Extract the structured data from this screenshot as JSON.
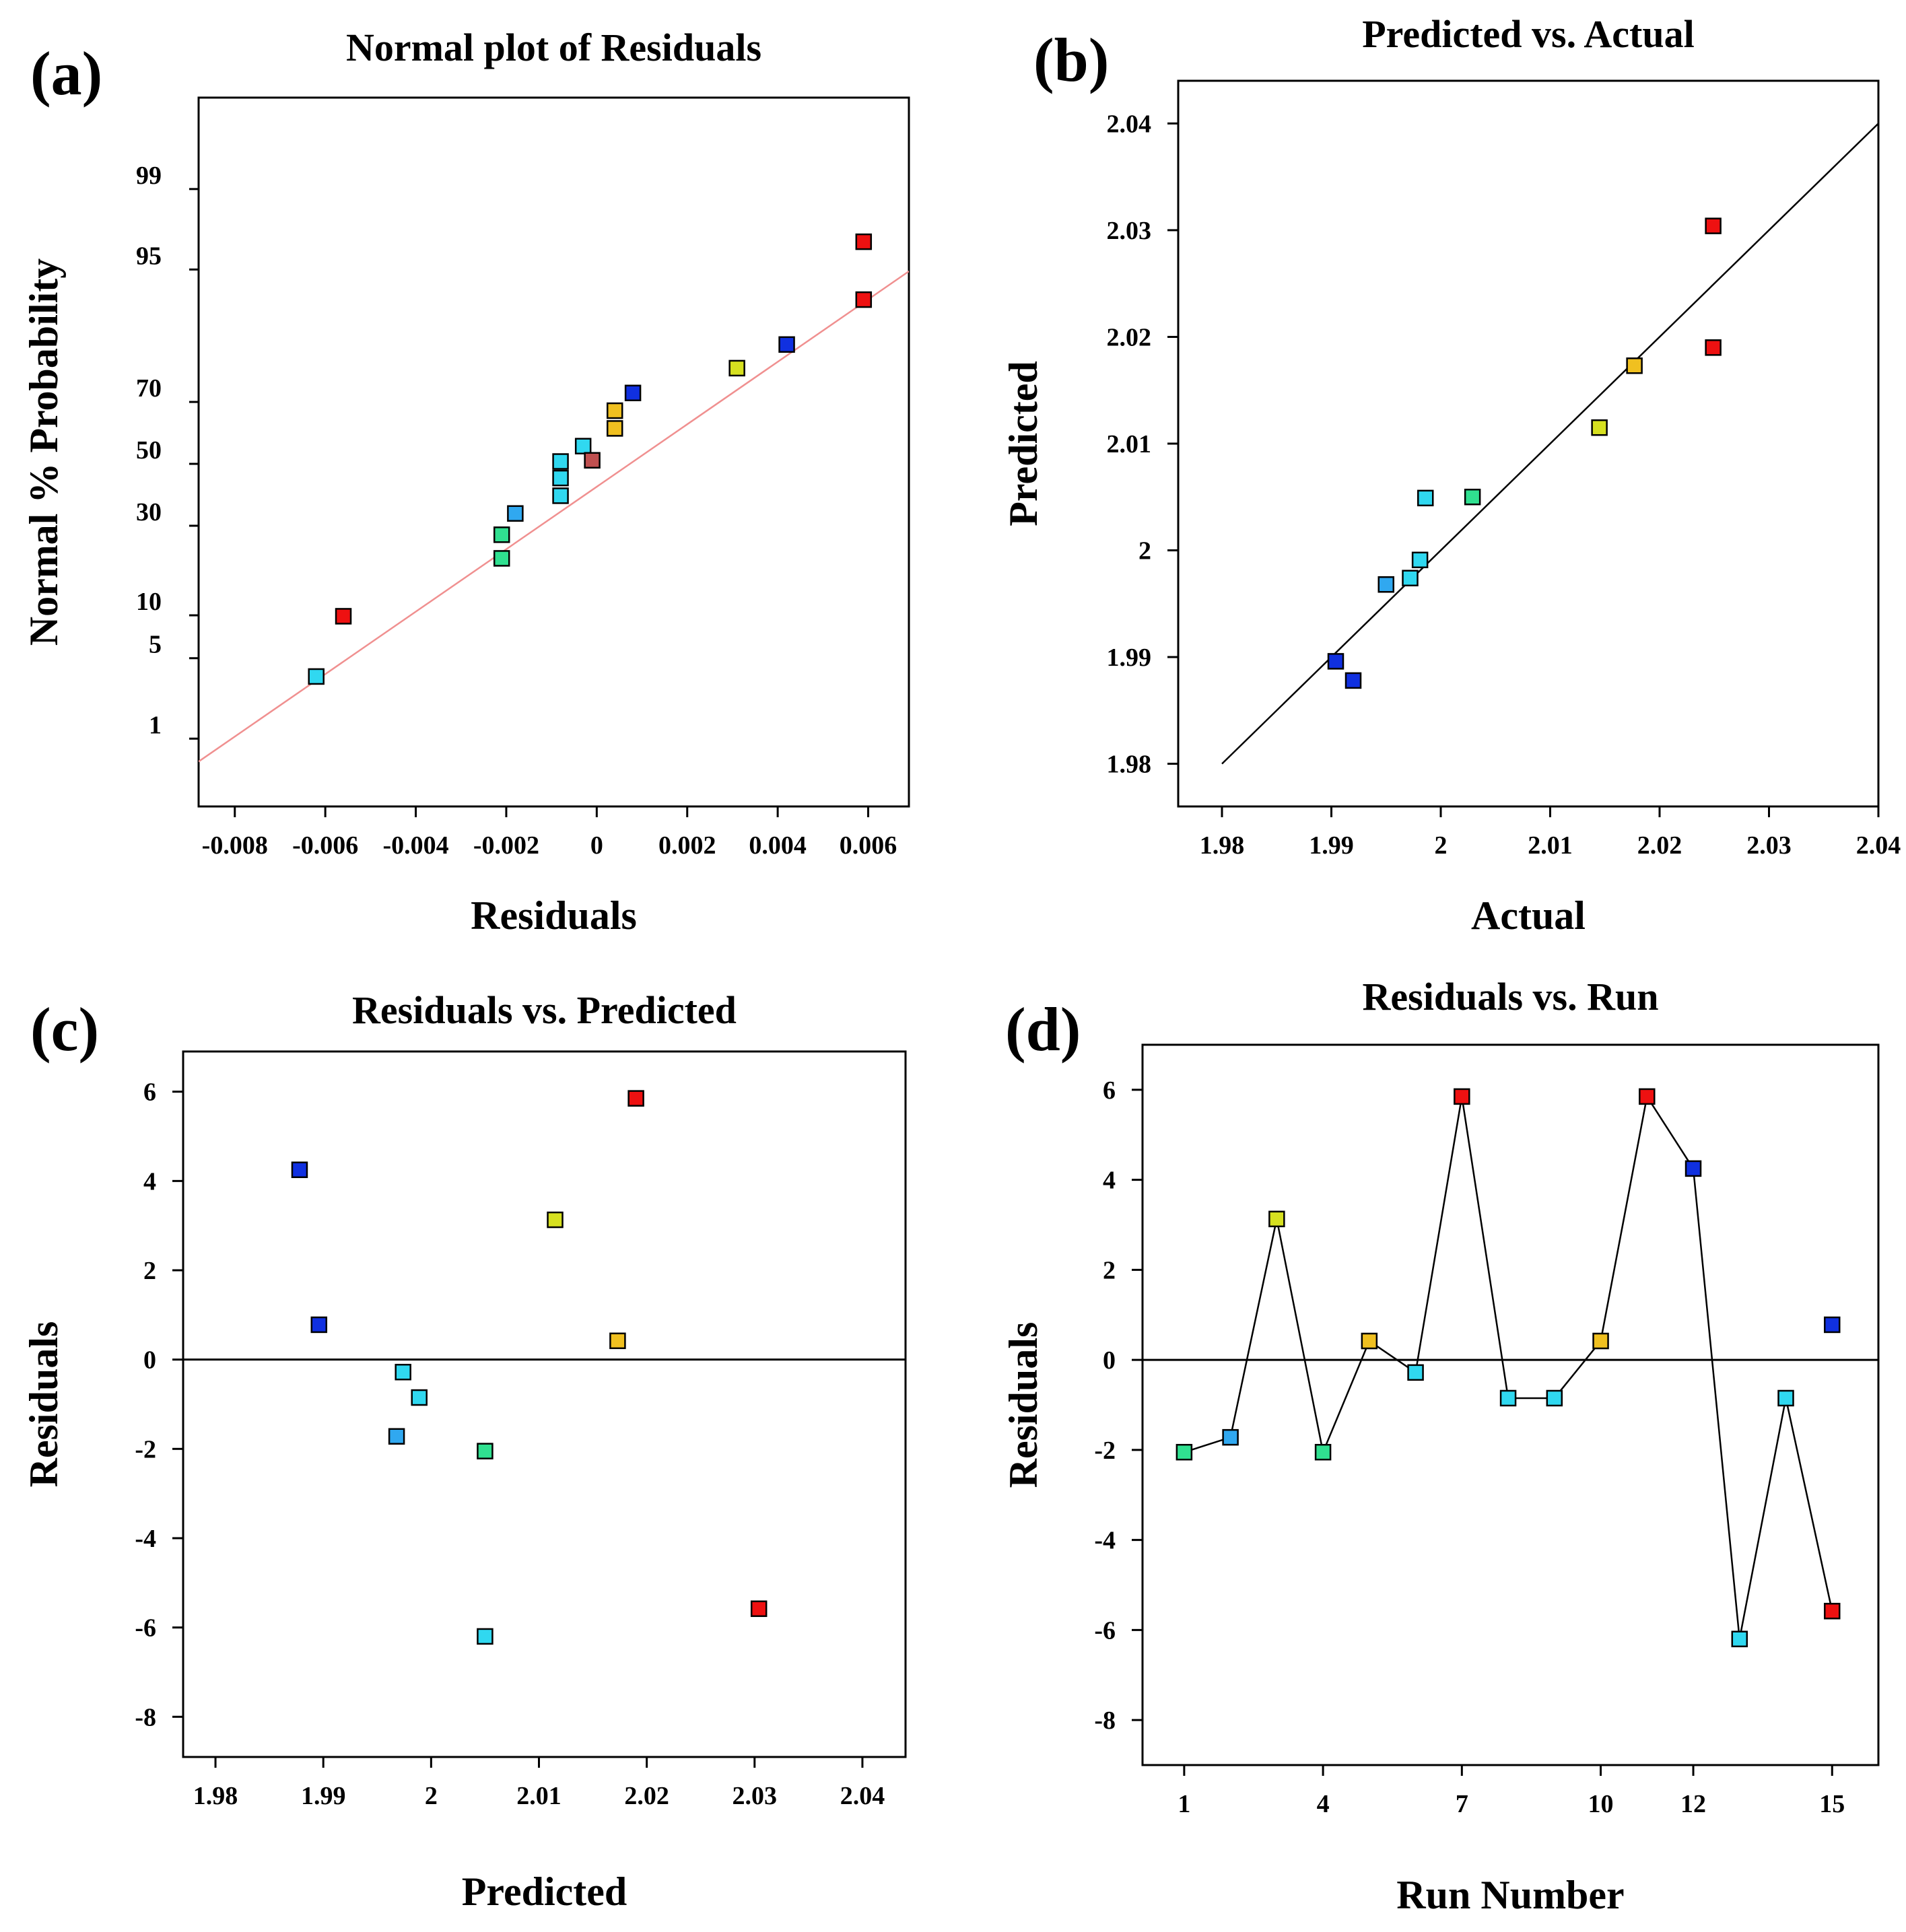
{
  "figure": {
    "colors": {
      "red": "#ee1111",
      "orange": "#f0c020",
      "yellow": "#d6e020",
      "green": "#30e090",
      "cyan": "#30d8f0",
      "sky": "#30a8f0",
      "blue": "#1030e0",
      "brown": "#c05050",
      "fit_line": "#f09090"
    }
  },
  "chart_data": [
    {
      "id": "a",
      "panel_label": "(a)",
      "type": "scatter",
      "title": "Normal plot of Residuals",
      "xlabel": "Residuals",
      "ylabel": "Normal % Probability",
      "xlim": [
        -0.0088,
        0.0069
      ],
      "xticks": [
        -0.008,
        -0.006,
        -0.004,
        -0.002,
        0,
        0.002,
        0.004,
        0.006
      ],
      "xtick_labels": [
        "-0.008",
        "-0.006",
        "-0.004",
        "-0.002",
        "0",
        "0.002",
        "0.004",
        "0.006"
      ],
      "yticks": [
        1,
        5,
        10,
        30,
        50,
        70,
        95,
        99
      ],
      "yticks_z": [
        -2.326,
        -1.645,
        -1.282,
        -0.524,
        0,
        0.524,
        1.645,
        2.326
      ],
      "yrange_z": [
        -2.9,
        3.1
      ],
      "fit_line": {
        "x": [
          -0.0088,
          0.0069
        ],
        "z": [
          -2.52,
          1.63
        ]
      },
      "points": [
        {
          "x": -0.0062,
          "z": -1.8,
          "color": "cyan"
        },
        {
          "x": -0.0056,
          "z": -1.29,
          "color": "red"
        },
        {
          "x": -0.0021,
          "z": -0.8,
          "color": "green"
        },
        {
          "x": -0.0021,
          "z": -0.6,
          "color": "green"
        },
        {
          "x": -0.0018,
          "z": -0.42,
          "color": "sky"
        },
        {
          "x": -0.0008,
          "z": -0.27,
          "color": "cyan"
        },
        {
          "x": -0.0008,
          "z": -0.12,
          "color": "cyan"
        },
        {
          "x": -0.0008,
          "z": 0.02,
          "color": "cyan"
        },
        {
          "x": -0.0003,
          "z": 0.15,
          "color": "cyan"
        },
        {
          "x": -0.0001,
          "z": 0.03,
          "color": "brown"
        },
        {
          "x": 0.0004,
          "z": 0.3,
          "color": "orange"
        },
        {
          "x": 0.0004,
          "z": 0.45,
          "color": "orange"
        },
        {
          "x": 0.0008,
          "z": 0.6,
          "color": "blue"
        },
        {
          "x": 0.0031,
          "z": 0.81,
          "color": "yellow"
        },
        {
          "x": 0.0042,
          "z": 1.01,
          "color": "blue"
        },
        {
          "x": 0.0059,
          "z": 1.39,
          "color": "red"
        },
        {
          "x": 0.0059,
          "z": 1.88,
          "color": "red"
        }
      ]
    },
    {
      "id": "b",
      "panel_label": "(b)",
      "type": "scatter",
      "title": "Predicted vs. Actual",
      "xlabel": "Actual",
      "ylabel": "Predicted",
      "xlim": [
        1.976,
        2.04
      ],
      "ylim": [
        1.976,
        2.044
      ],
      "xticks": [
        1.98,
        1.99,
        2,
        2.01,
        2.02,
        2.03,
        2.04
      ],
      "xtick_labels": [
        "1.98",
        "1.99",
        "2",
        "2.01",
        "2.02",
        "2.03",
        "2.04"
      ],
      "yticks": [
        1.98,
        1.99,
        2,
        2.01,
        2.02,
        2.03,
        2.04
      ],
      "ytick_labels": [
        "1.98",
        "1.99",
        "2",
        "2.01",
        "2.02",
        "2.03",
        "2.04"
      ],
      "reference_line": {
        "x": [
          1.98,
          2.04
        ],
        "y": [
          1.98,
          2.04
        ]
      },
      "points": [
        {
          "x": 1.9904,
          "y": 1.9896,
          "color": "blue"
        },
        {
          "x": 1.992,
          "y": 1.9878,
          "color": "blue"
        },
        {
          "x": 1.995,
          "y": 1.9968,
          "color": "sky"
        },
        {
          "x": 1.9972,
          "y": 1.9974,
          "color": "cyan"
        },
        {
          "x": 1.9981,
          "y": 1.9991,
          "color": "cyan"
        },
        {
          "x": 1.9986,
          "y": 2.0049,
          "color": "cyan"
        },
        {
          "x": 2.0029,
          "y": 2.005,
          "color": "green"
        },
        {
          "x": 2.0145,
          "y": 2.0115,
          "color": "yellow"
        },
        {
          "x": 2.0177,
          "y": 2.0173,
          "color": "orange"
        },
        {
          "x": 2.0249,
          "y": 2.019,
          "color": "red"
        },
        {
          "x": 2.0249,
          "y": 2.0304,
          "color": "red"
        }
      ]
    },
    {
      "id": "c",
      "panel_label": "(c)",
      "type": "scatter",
      "title": "Residuals vs. Predicted",
      "xlabel": "Predicted",
      "ylabel": "Residuals",
      "xlim": [
        1.977,
        2.044
      ],
      "ylim": [
        -8.9,
        6.9
      ],
      "xticks": [
        1.98,
        1.99,
        2,
        2.01,
        2.02,
        2.03,
        2.04
      ],
      "xtick_labels": [
        "1.98",
        "1.99",
        "2",
        "2.01",
        "2.02",
        "2.03",
        "2.04"
      ],
      "yticks": [
        -8,
        -6,
        -4,
        -2,
        0,
        2,
        4,
        6
      ],
      "ytick_labels": [
        "-8",
        "-6",
        "-4",
        "-2",
        "0",
        "2",
        "4",
        "6"
      ],
      "zero_line": 0,
      "points": [
        {
          "x": 1.9878,
          "y": 4.25,
          "color": "blue"
        },
        {
          "x": 1.9896,
          "y": 0.78,
          "color": "blue"
        },
        {
          "x": 1.9968,
          "y": -1.72,
          "color": "sky"
        },
        {
          "x": 1.9974,
          "y": -0.28,
          "color": "cyan"
        },
        {
          "x": 1.9989,
          "y": -0.85,
          "color": "cyan"
        },
        {
          "x": 2.005,
          "y": -2.05,
          "color": "green"
        },
        {
          "x": 2.005,
          "y": -6.2,
          "color": "cyan"
        },
        {
          "x": 2.0115,
          "y": 3.13,
          "color": "yellow"
        },
        {
          "x": 2.0173,
          "y": 0.42,
          "color": "orange"
        },
        {
          "x": 2.019,
          "y": 5.85,
          "color": "red"
        },
        {
          "x": 2.0304,
          "y": -5.58,
          "color": "red"
        }
      ]
    },
    {
      "id": "d",
      "panel_label": "(d)",
      "type": "line",
      "title": "Residuals vs. Run",
      "xlabel": "Run Number",
      "ylabel": "Residuals",
      "xlim": [
        0.1,
        16.0
      ],
      "ylim": [
        -9.0,
        7.0
      ],
      "xticks": [
        1,
        4,
        7,
        10,
        12,
        15
      ],
      "xtick_labels": [
        "1",
        "4",
        "7",
        "10",
        "12",
        "15"
      ],
      "yticks": [
        -8,
        -6,
        -4,
        -2,
        0,
        2,
        4,
        6
      ],
      "ytick_labels": [
        "-8",
        "-6",
        "-4",
        "-2",
        "0",
        "2",
        "4",
        "6"
      ],
      "zero_line": 0,
      "x": [
        1,
        2,
        3,
        4,
        5,
        6,
        7,
        8,
        9,
        10,
        11,
        12,
        13,
        14,
        15
      ],
      "y": [
        -2.05,
        -1.72,
        3.13,
        -2.05,
        0.42,
        -0.28,
        5.85,
        -0.85,
        -0.85,
        0.42,
        5.85,
        4.25,
        -6.2,
        -0.85,
        -5.58
      ],
      "point_colors": [
        "green",
        "sky",
        "yellow",
        "green",
        "orange",
        "cyan",
        "red",
        "cyan",
        "cyan",
        "orange",
        "red",
        "blue",
        "cyan",
        "cyan",
        "red"
      ],
      "extra_point": {
        "x": 15,
        "y": 0.78,
        "color": "blue"
      }
    }
  ]
}
